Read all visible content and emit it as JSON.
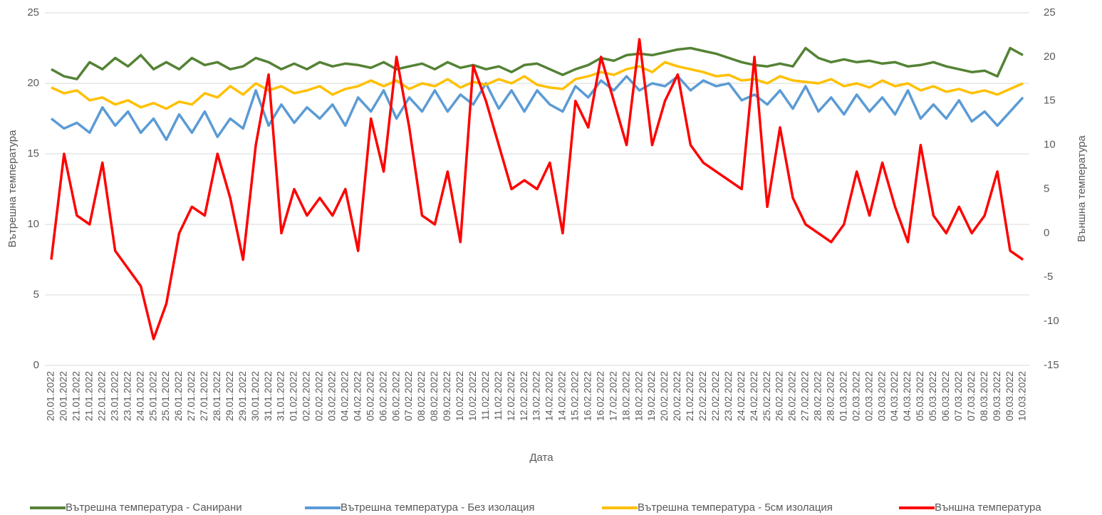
{
  "chart_data": {
    "type": "line",
    "x_label": "Дата",
    "y_label": "Вътрешна температура",
    "y2_label": "Външна температура",
    "categories": [
      "20.01.2022",
      "20.01.2022",
      "21.01.2022",
      "21.01.2022",
      "22.01.2022",
      "23.01.2022",
      "23.01.2022",
      "24.01.2022",
      "25.01.2022",
      "25.01.2022",
      "26.01.2022",
      "27.01.2022",
      "27.01.2022",
      "28.01.2022",
      "29.01.2022",
      "29.01.2022",
      "30.01.2022",
      "31.01.2022",
      "31.01.2022",
      "01.02.2022",
      "02.02.2022",
      "02.02.2022",
      "03.02.2022",
      "04.02.2022",
      "04.02.2022",
      "05.02.2022",
      "06.02.2022",
      "06.02.2022",
      "07.02.2022",
      "08.02.2022",
      "08.02.2022",
      "09.02.2022",
      "10.02.2022",
      "10.02.2022",
      "11.02.2022",
      "11.02.2022",
      "12.02.2022",
      "12.02.2022",
      "13.02.2022",
      "14.02.2022",
      "14.02.2022",
      "15.02.2022",
      "16.02.2022",
      "16.02.2022",
      "17.02.2022",
      "18.02.2022",
      "18.02.2022",
      "19.02.2022",
      "20.02.2022",
      "20.02.2022",
      "21.02.2022",
      "22.02.2022",
      "22.02.2022",
      "23.02.2022",
      "24.02.2022",
      "24.02.2022",
      "25.02.2022",
      "26.02.2022",
      "26.02.2022",
      "27.02.2022",
      "28.02.2022",
      "28.02.2022",
      "01.03.2022",
      "02.03.2022",
      "02.03.2022",
      "03.03.2022",
      "04.03.2022",
      "04.03.2022",
      "05.03.2022",
      "05.03.2022",
      "06.03.2022",
      "07.03.2022",
      "07.03.2022",
      "08.03.2022",
      "09.03.2022",
      "09.03.2022",
      "10.03.2022"
    ],
    "series": [
      {
        "name": "Вътрешна температура - Санирани",
        "color": "#548235",
        "values": [
          21,
          20.5,
          20.3,
          21.5,
          21,
          21.8,
          21.2,
          22,
          21,
          21.5,
          21,
          21.8,
          21.3,
          21.5,
          21,
          21.2,
          21.8,
          21.5,
          21,
          21.4,
          21,
          21.5,
          21.2,
          21.4,
          21.3,
          21.1,
          21.5,
          21,
          21.2,
          21.4,
          21,
          21.5,
          21.1,
          21.3,
          21,
          21.2,
          20.8,
          21.3,
          21.4,
          21,
          20.6,
          21,
          21.3,
          21.8,
          21.6,
          22,
          22.1,
          22,
          22.2,
          22.4,
          22.5,
          22.3,
          22.1,
          21.8,
          21.5,
          21.3,
          21.2,
          21.4,
          21.2,
          22.5,
          21.8,
          21.5,
          21.7,
          21.5,
          21.6,
          21.4,
          21.5,
          21.2,
          21.3,
          21.5,
          21.2,
          21,
          20.8,
          20.9,
          20.5,
          22.5,
          22
        ]
      },
      {
        "name": "Вътрешна температура - Без изолация",
        "color": "#5b9bd5",
        "values": [
          17.5,
          16.8,
          17.2,
          16.5,
          18.3,
          17,
          18,
          16.5,
          17.5,
          16,
          17.8,
          16.5,
          18,
          16.2,
          17.5,
          16.8,
          19.5,
          17,
          18.5,
          17.2,
          18.3,
          17.5,
          18.5,
          17,
          19,
          18,
          19.5,
          17.5,
          19,
          18,
          19.5,
          18,
          19.2,
          18.5,
          20,
          18.2,
          19.5,
          18,
          19.5,
          18.5,
          18,
          19.8,
          19,
          20.2,
          19.5,
          20.5,
          19.5,
          20,
          19.8,
          20.5,
          19.5,
          20.2,
          19.8,
          20,
          18.8,
          19.2,
          18.5,
          19.5,
          18.2,
          19.8,
          18,
          19,
          17.8,
          19.2,
          18,
          19,
          17.8,
          19.5,
          17.5,
          18.5,
          17.5,
          18.8,
          17.3,
          18,
          17,
          18,
          19
        ]
      },
      {
        "name": "Вътрешна температура - 5см изолация",
        "color": "#ffc000",
        "values": [
          19.7,
          19.3,
          19.5,
          18.8,
          19,
          18.5,
          18.8,
          18.3,
          18.6,
          18.2,
          18.7,
          18.5,
          19.3,
          19,
          19.8,
          19.2,
          20,
          19.5,
          19.8,
          19.3,
          19.5,
          19.8,
          19.2,
          19.6,
          19.8,
          20.2,
          19.8,
          20.2,
          19.6,
          20,
          19.8,
          20.3,
          19.7,
          20.1,
          19.9,
          20.3,
          20,
          20.5,
          19.9,
          19.7,
          19.6,
          20.3,
          20.5,
          20.8,
          20.6,
          21,
          21.2,
          20.8,
          21.5,
          21.2,
          21,
          20.8,
          20.5,
          20.6,
          20.2,
          20.3,
          20,
          20.5,
          20.2,
          20.1,
          20,
          20.3,
          19.8,
          20,
          19.7,
          20.2,
          19.8,
          20,
          19.5,
          19.8,
          19.4,
          19.6,
          19.3,
          19.5,
          19.2,
          19.6,
          20
        ]
      },
      {
        "name": "Външна температура",
        "color": "#ff0000",
        "axis": "y2",
        "values": [
          -3,
          9,
          2,
          1,
          8,
          -2,
          -4,
          -6,
          -12,
          -8,
          0,
          3,
          2,
          9,
          4,
          -3,
          10,
          18,
          0,
          5,
          2,
          4,
          2,
          5,
          -2,
          13,
          7,
          20,
          12,
          2,
          1,
          7,
          -1,
          19,
          15,
          10,
          5,
          6,
          5,
          8,
          0,
          15,
          12,
          20,
          15,
          10,
          22,
          10,
          15,
          18,
          10,
          8,
          7,
          6,
          5,
          20,
          3,
          12,
          4,
          1,
          0,
          -1,
          1,
          7,
          2,
          8,
          3,
          -1,
          10,
          2,
          0,
          3,
          0,
          2,
          7,
          -2,
          -3
        ]
      }
    ],
    "ylim": [
      0,
      25
    ],
    "yticks": [
      0,
      5,
      10,
      15,
      20,
      25
    ],
    "y2lim": [
      -15,
      25
    ],
    "y2ticks": [
      -15,
      -10,
      -5,
      0,
      5,
      10,
      15,
      20,
      25
    ],
    "grid": true,
    "legend": "bottom"
  }
}
